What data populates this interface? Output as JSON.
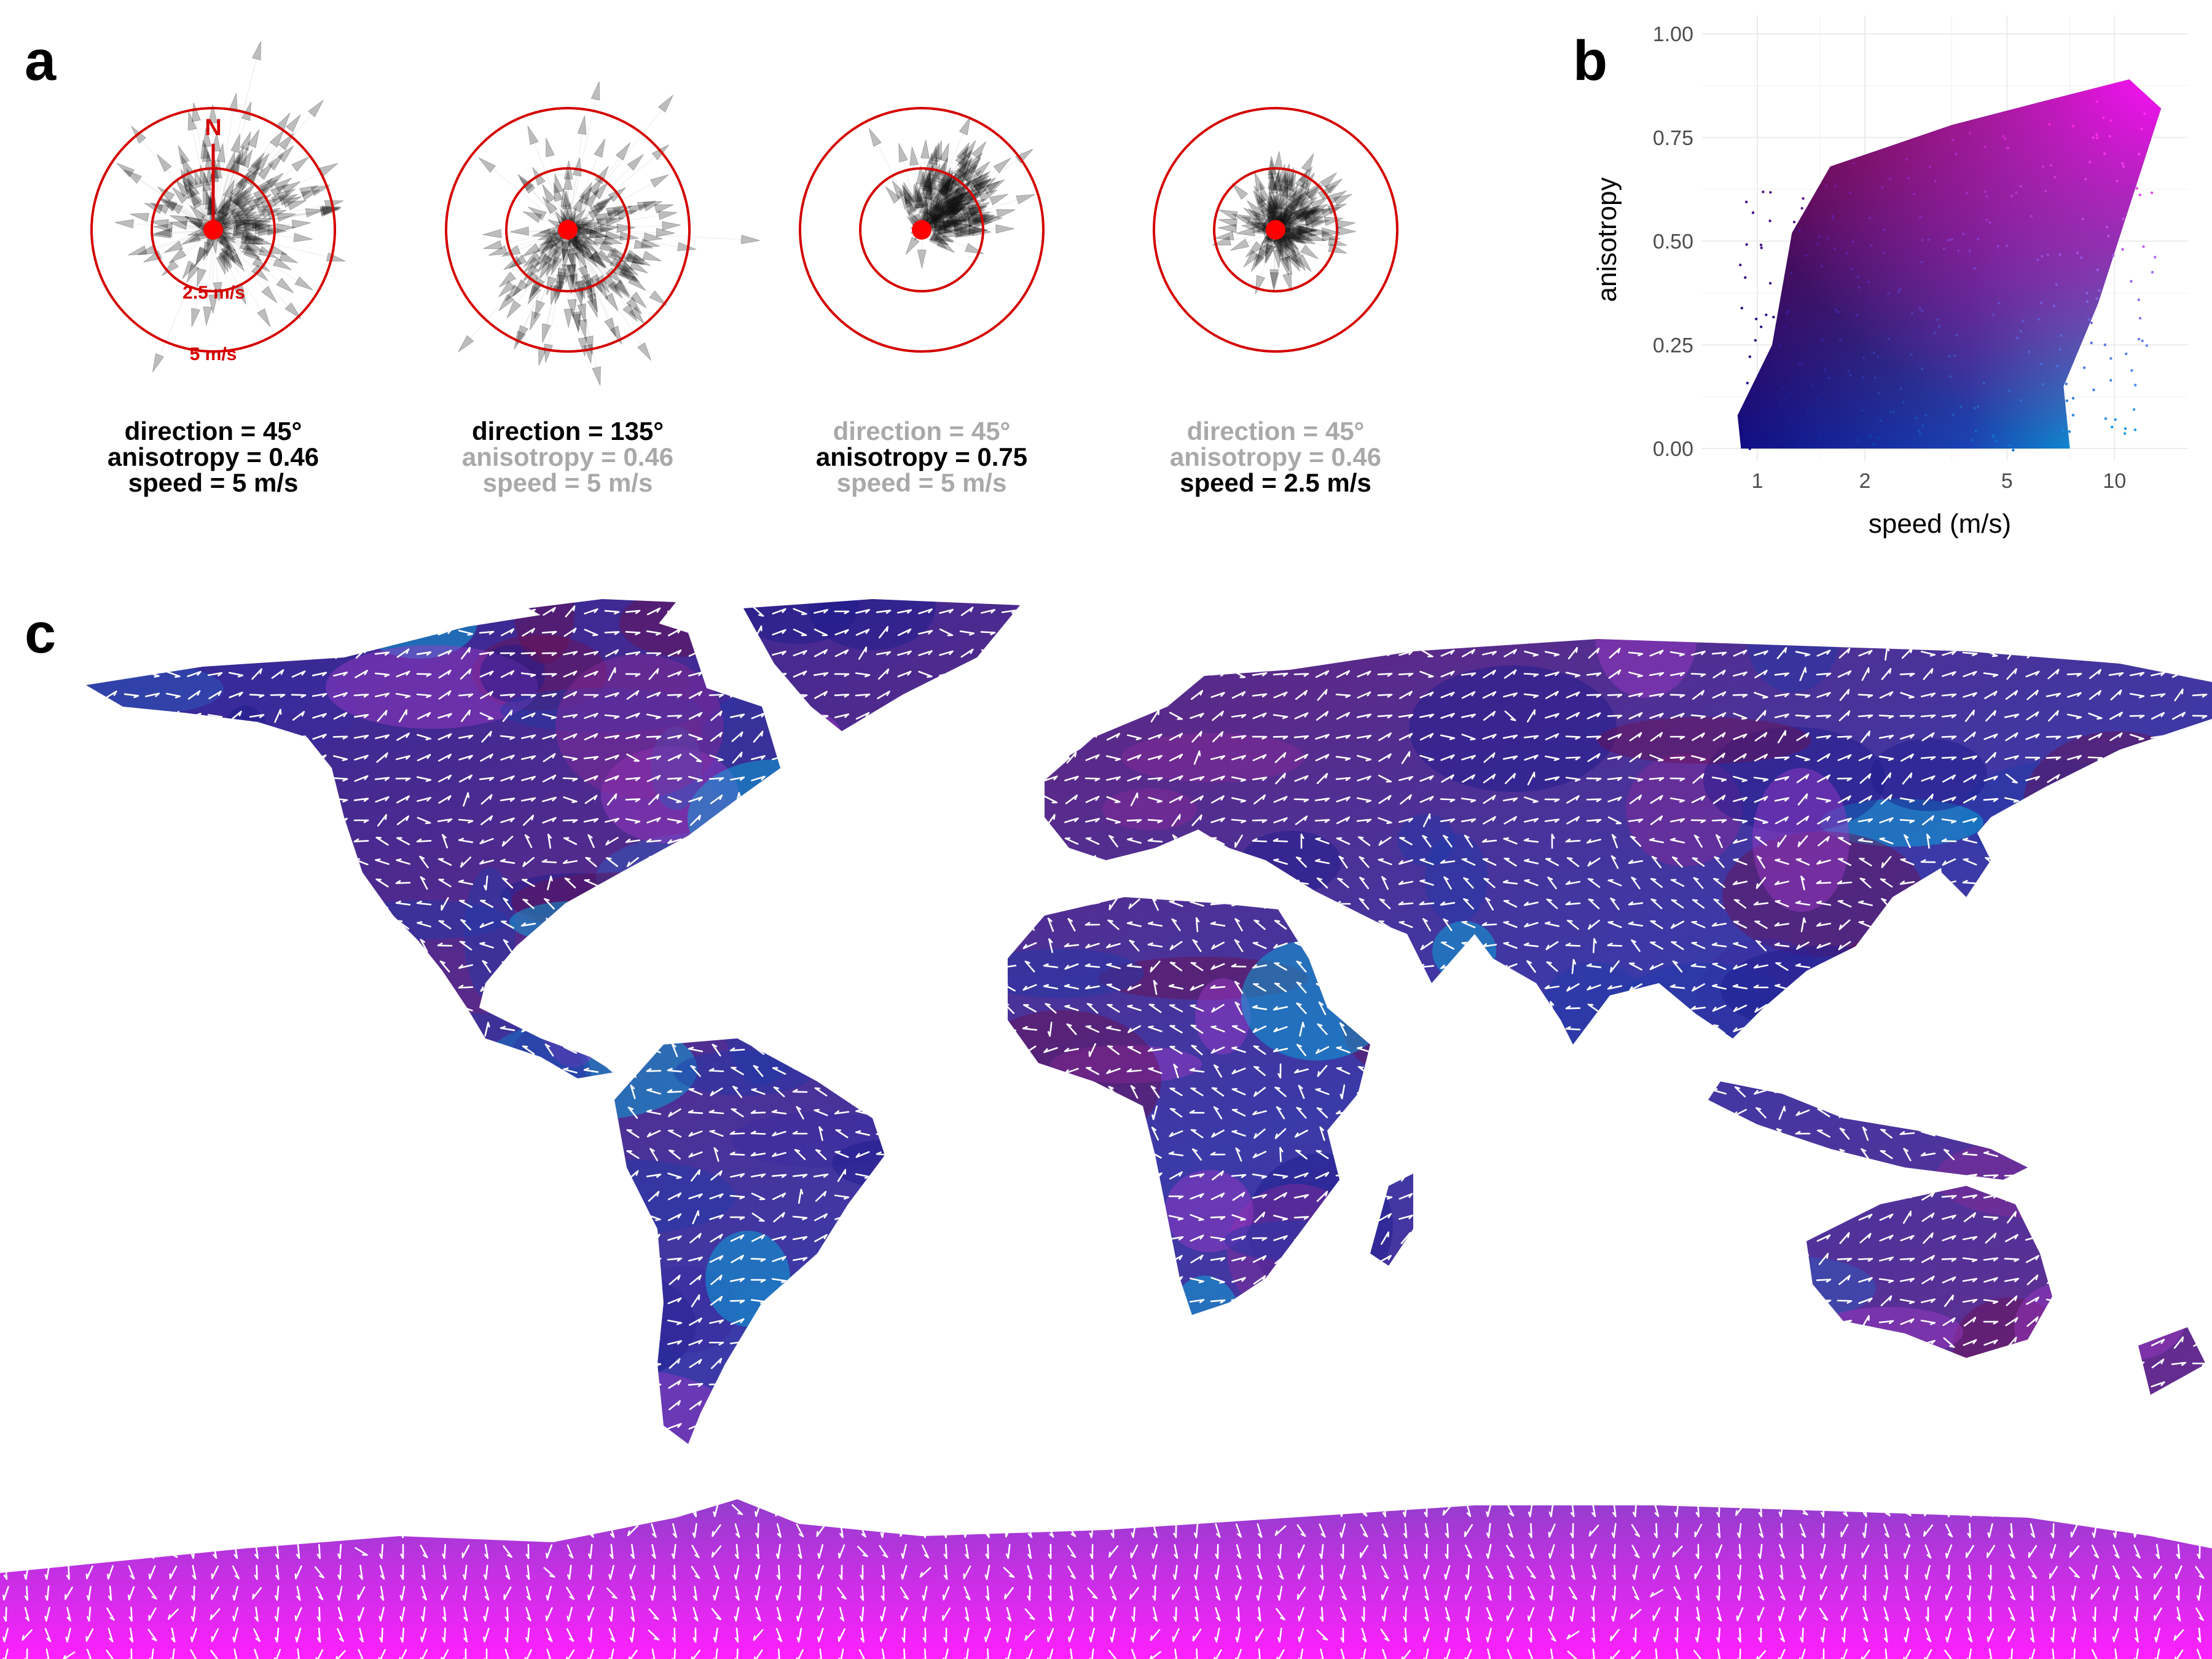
{
  "panel_labels": {
    "a": "a",
    "b": "b",
    "c": "c"
  },
  "colors": {
    "ring": "#d40000",
    "highlight_text": "#000000",
    "muted_text": "#a9a9a9",
    "low_speed_low_anisotropy": "#0d0d85",
    "high_speed_low_anisotropy": "#00ccee",
    "low_speed_high_anisotropy": "#7a0010",
    "high_speed_high_anisotropy": "#ff00ff",
    "map_arrow": "#ffffff"
  },
  "panel_a": {
    "north_label": "N",
    "ring_labels": [
      "2.5 m/s",
      "5 m/s"
    ],
    "examples": [
      {
        "direction": 45,
        "anisotropy": 0.46,
        "speed": 5,
        "lines": [
          "direction = 45°",
          "anisotropy = 0.46",
          "speed = 5 m/s"
        ],
        "highlight": [
          true,
          true,
          true
        ]
      },
      {
        "direction": 135,
        "anisotropy": 0.46,
        "speed": 5,
        "lines": [
          "direction = 135°",
          "anisotropy = 0.46",
          "speed = 5 m/s"
        ],
        "highlight": [
          true,
          false,
          false
        ]
      },
      {
        "direction": 45,
        "anisotropy": 0.75,
        "speed": 5,
        "lines": [
          "direction = 45°",
          "anisotropy = 0.75",
          "speed = 5 m/s"
        ],
        "highlight": [
          false,
          true,
          false
        ]
      },
      {
        "direction": 45,
        "anisotropy": 0.46,
        "speed": 2.5,
        "lines": [
          "direction = 45°",
          "anisotropy = 0.46",
          "speed = 2.5 m/s"
        ],
        "highlight": [
          false,
          false,
          true
        ]
      }
    ]
  },
  "chart_data": [
    {
      "type": "scatter",
      "panel": "b",
      "xlabel": "speed (m/s)",
      "ylabel": "anisotropy",
      "x_scale": "log",
      "xlim": [
        0.7,
        16
      ],
      "ylim": [
        0,
        1.0
      ],
      "x_ticks": [
        {
          "value": 1,
          "label": "1"
        },
        {
          "value": 2,
          "label": "2"
        },
        {
          "value": 5,
          "label": "5"
        },
        {
          "value": 10,
          "label": "10"
        }
      ],
      "y_ticks": [
        {
          "value": 0,
          "label": "0.00"
        },
        {
          "value": 0.25,
          "label": "0.25"
        },
        {
          "value": 0.5,
          "label": "0.50"
        },
        {
          "value": 0.75,
          "label": "0.75"
        },
        {
          "value": 1.0,
          "label": "1.00"
        }
      ],
      "grid": true,
      "point_cloud_outline": [
        {
          "x": 0.9,
          "y": 0.0
        },
        {
          "x": 7.5,
          "y": 0.0
        },
        {
          "x": 7.2,
          "y": 0.15
        },
        {
          "x": 9.0,
          "y": 0.35
        },
        {
          "x": 13.5,
          "y": 0.82
        },
        {
          "x": 11.0,
          "y": 0.89
        },
        {
          "x": 6.5,
          "y": 0.84
        },
        {
          "x": 3.5,
          "y": 0.78
        },
        {
          "x": 1.6,
          "y": 0.68
        },
        {
          "x": 1.25,
          "y": 0.52
        },
        {
          "x": 1.1,
          "y": 0.25
        },
        {
          "x": 0.88,
          "y": 0.08
        }
      ],
      "color_encoding": "bivariate: speed (blue→cyan) × anisotropy (blue→maroon); high speed & high anisotropy magenta"
    },
    {
      "type": "map",
      "panel": "c",
      "projection": "equirectangular",
      "content": "global land wind field: white arrows show direction, fill color encodes speed × anisotropy"
    }
  ]
}
